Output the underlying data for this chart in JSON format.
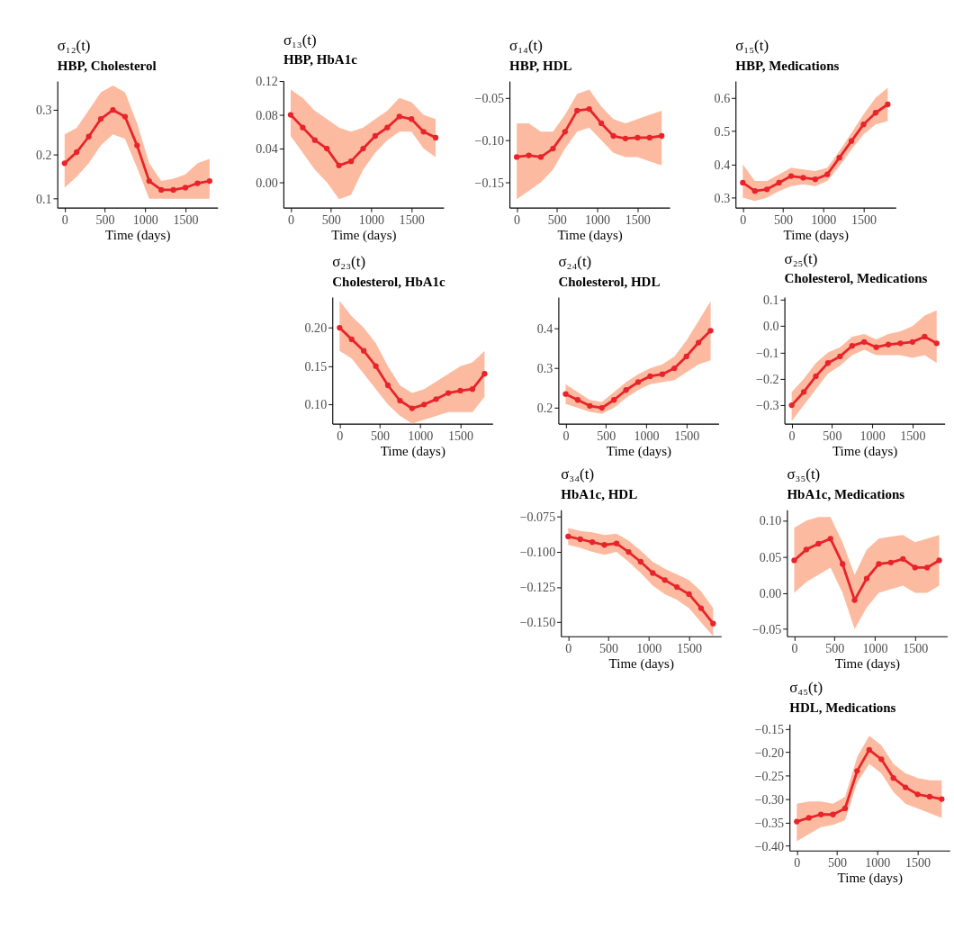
{
  "chart_data": [
    {
      "type": "line",
      "title": "σ₁₂(t)",
      "subtitle": "HBP, Cholesterol",
      "xlabel": "Time (days)",
      "marker": "circle",
      "line_style": "solid",
      "grid": false,
      "xlim": [
        -90,
        1900
      ],
      "xticks": [
        0,
        500,
        1000,
        1500
      ],
      "ylim": [
        0.08,
        0.365
      ],
      "yticks": [
        {
          "value": 0.1,
          "label": "0.1"
        },
        {
          "value": 0.2,
          "label": "0.2"
        },
        {
          "value": 0.3,
          "label": "0.3"
        }
      ],
      "x": [
        0,
        150,
        300,
        450,
        600,
        750,
        900,
        1050,
        1200,
        1350,
        1500,
        1650,
        1800
      ],
      "series": [
        {
          "color": "#e8242b",
          "values": [
            0.18,
            0.205,
            0.24,
            0.28,
            0.3,
            0.285,
            0.22,
            0.14,
            0.12,
            0.12,
            0.125,
            0.135,
            0.14
          ],
          "lower": [
            0.125,
            0.15,
            0.18,
            0.22,
            0.245,
            0.235,
            0.17,
            0.1,
            0.1,
            0.1,
            0.1,
            0.1,
            0.1
          ],
          "upper": [
            0.245,
            0.26,
            0.3,
            0.34,
            0.355,
            0.34,
            0.27,
            0.18,
            0.14,
            0.145,
            0.155,
            0.18,
            0.19
          ]
        }
      ]
    },
    {
      "type": "line",
      "title": "σ₁₃(t)",
      "subtitle": "HBP, HbA1c",
      "xlabel": "Time (days)",
      "marker": "circle",
      "line_style": "solid",
      "grid": false,
      "xlim": [
        -90,
        1900
      ],
      "xticks": [
        0,
        500,
        1000,
        1500
      ],
      "ylim": [
        -0.03,
        0.12
      ],
      "yticks": [
        {
          "value": 0,
          "label": "0.00"
        },
        {
          "value": 0.04,
          "label": "0.04"
        },
        {
          "value": 0.08,
          "label": "0.08"
        },
        {
          "value": 0.12,
          "label": "0.12"
        }
      ],
      "x": [
        0,
        150,
        300,
        450,
        600,
        750,
        900,
        1050,
        1200,
        1350,
        1500,
        1650,
        1800
      ],
      "series": [
        {
          "color": "#e8242b",
          "values": [
            0.08,
            0.065,
            0.05,
            0.04,
            0.02,
            0.025,
            0.04,
            0.055,
            0.065,
            0.078,
            0.075,
            0.06,
            0.053
          ],
          "lower": [
            0.055,
            0.035,
            0.015,
            0.0,
            -0.02,
            -0.015,
            0.015,
            0.035,
            0.05,
            0.06,
            0.06,
            0.04,
            0.03
          ],
          "upper": [
            0.11,
            0.1,
            0.085,
            0.075,
            0.065,
            0.06,
            0.065,
            0.075,
            0.085,
            0.1,
            0.095,
            0.08,
            0.075
          ]
        }
      ]
    },
    {
      "type": "line",
      "title": "σ₁₄(t)",
      "subtitle": "HBP, HDL",
      "xlabel": "Time (days)",
      "marker": "circle",
      "line_style": "solid",
      "grid": false,
      "xlim": [
        -90,
        1900
      ],
      "xticks": [
        0,
        500,
        1000,
        1500
      ],
      "ylim": [
        -0.18,
        -0.03
      ],
      "yticks": [
        {
          "value": -0.15,
          "label": "−0.15"
        },
        {
          "value": -0.1,
          "label": "−0.10"
        },
        {
          "value": -0.05,
          "label": "−0.05"
        }
      ],
      "x": [
        0,
        150,
        300,
        450,
        600,
        750,
        900,
        1050,
        1200,
        1350,
        1500,
        1650,
        1800
      ],
      "series": [
        {
          "color": "#e8242b",
          "values": [
            -0.12,
            -0.118,
            -0.12,
            -0.11,
            -0.09,
            -0.065,
            -0.063,
            -0.08,
            -0.095,
            -0.098,
            -0.097,
            -0.097,
            -0.095
          ],
          "lower": [
            -0.17,
            -0.16,
            -0.15,
            -0.135,
            -0.11,
            -0.09,
            -0.085,
            -0.1,
            -0.115,
            -0.12,
            -0.12,
            -0.125,
            -0.13
          ],
          "upper": [
            -0.08,
            -0.08,
            -0.09,
            -0.09,
            -0.07,
            -0.045,
            -0.04,
            -0.06,
            -0.075,
            -0.08,
            -0.075,
            -0.07,
            -0.065
          ]
        }
      ]
    },
    {
      "type": "line",
      "title": "σ₁₅(t)",
      "subtitle": "HBP, Medications",
      "xlabel": "Time (days)",
      "marker": "circle",
      "line_style": "solid",
      "grid": false,
      "xlim": [
        -90,
        1900
      ],
      "xticks": [
        0,
        500,
        1000,
        1500
      ],
      "ylim": [
        0.27,
        0.65
      ],
      "yticks": [
        {
          "value": 0.3,
          "label": "0.3"
        },
        {
          "value": 0.4,
          "label": "0.4"
        },
        {
          "value": 0.5,
          "label": "0.5"
        },
        {
          "value": 0.6,
          "label": "0.6"
        }
      ],
      "x": [
        0,
        150,
        300,
        450,
        600,
        750,
        900,
        1050,
        1200,
        1350,
        1500,
        1650,
        1800
      ],
      "series": [
        {
          "color": "#e8242b",
          "values": [
            0.345,
            0.32,
            0.325,
            0.345,
            0.365,
            0.36,
            0.355,
            0.37,
            0.42,
            0.47,
            0.52,
            0.555,
            0.58
          ],
          "lower": [
            0.3,
            0.29,
            0.3,
            0.32,
            0.335,
            0.34,
            0.335,
            0.35,
            0.395,
            0.445,
            0.49,
            0.52,
            0.53
          ],
          "upper": [
            0.4,
            0.35,
            0.35,
            0.37,
            0.39,
            0.385,
            0.38,
            0.39,
            0.44,
            0.495,
            0.55,
            0.6,
            0.63
          ]
        }
      ]
    },
    {
      "type": "line",
      "title": "σ₂₃(t)",
      "subtitle": "Cholesterol, HbA1c",
      "xlabel": "Time (days)",
      "marker": "circle",
      "line_style": "solid",
      "grid": false,
      "xlim": [
        -90,
        1900
      ],
      "xticks": [
        0,
        500,
        1000,
        1500
      ],
      "ylim": [
        0.075,
        0.24
      ],
      "yticks": [
        {
          "value": 0.1,
          "label": "0.10"
        },
        {
          "value": 0.15,
          "label": "0.15"
        },
        {
          "value": 0.2,
          "label": "0.20"
        }
      ],
      "x": [
        0,
        150,
        300,
        450,
        600,
        750,
        900,
        1050,
        1200,
        1350,
        1500,
        1650,
        1800
      ],
      "series": [
        {
          "color": "#e8242b",
          "values": [
            0.2,
            0.185,
            0.17,
            0.15,
            0.125,
            0.105,
            0.095,
            0.1,
            0.107,
            0.115,
            0.118,
            0.12,
            0.14
          ],
          "lower": [
            0.17,
            0.16,
            0.14,
            0.12,
            0.1,
            0.085,
            0.075,
            0.08,
            0.085,
            0.09,
            0.09,
            0.09,
            0.11
          ],
          "upper": [
            0.235,
            0.215,
            0.2,
            0.18,
            0.15,
            0.125,
            0.115,
            0.12,
            0.13,
            0.14,
            0.15,
            0.155,
            0.17
          ]
        }
      ]
    },
    {
      "type": "line",
      "title": "σ₂₄(t)",
      "subtitle": "Cholesterol, HDL",
      "xlabel": "Time (days)",
      "marker": "circle",
      "line_style": "solid",
      "grid": false,
      "xlim": [
        -90,
        1900
      ],
      "xticks": [
        0,
        500,
        1000,
        1500
      ],
      "ylim": [
        0.16,
        0.48
      ],
      "yticks": [
        {
          "value": 0.2,
          "label": "0.2"
        },
        {
          "value": 0.3,
          "label": "0.3"
        },
        {
          "value": 0.4,
          "label": "0.4"
        }
      ],
      "x": [
        0,
        150,
        300,
        450,
        600,
        750,
        900,
        1050,
        1200,
        1350,
        1500,
        1650,
        1800
      ],
      "series": [
        {
          "color": "#e8242b",
          "values": [
            0.235,
            0.22,
            0.205,
            0.2,
            0.22,
            0.245,
            0.265,
            0.28,
            0.285,
            0.3,
            0.33,
            0.365,
            0.395
          ],
          "lower": [
            0.21,
            0.2,
            0.19,
            0.185,
            0.2,
            0.225,
            0.245,
            0.26,
            0.265,
            0.27,
            0.29,
            0.31,
            0.32
          ],
          "upper": [
            0.26,
            0.24,
            0.22,
            0.215,
            0.24,
            0.265,
            0.285,
            0.3,
            0.31,
            0.33,
            0.37,
            0.42,
            0.47
          ]
        }
      ]
    },
    {
      "type": "line",
      "title": "σ₂₅(t)",
      "subtitle": "Cholesterol, Medications",
      "xlabel": "Time (days)",
      "marker": "circle",
      "line_style": "solid",
      "grid": false,
      "xlim": [
        -90,
        1900
      ],
      "xticks": [
        0,
        500,
        1000,
        1500
      ],
      "ylim": [
        -0.37,
        0.11
      ],
      "yticks": [
        {
          "value": -0.3,
          "label": "−0.3"
        },
        {
          "value": -0.2,
          "label": "−0.2"
        },
        {
          "value": -0.1,
          "label": "−0.1"
        },
        {
          "value": 0,
          "label": "0.0"
        },
        {
          "value": 0.1,
          "label": "0.1"
        }
      ],
      "x": [
        0,
        150,
        300,
        450,
        600,
        750,
        900,
        1050,
        1200,
        1350,
        1500,
        1650,
        1800
      ],
      "series": [
        {
          "color": "#e8242b",
          "values": [
            -0.3,
            -0.25,
            -0.19,
            -0.14,
            -0.115,
            -0.075,
            -0.06,
            -0.08,
            -0.07,
            -0.065,
            -0.06,
            -0.04,
            -0.065
          ],
          "lower": [
            -0.36,
            -0.3,
            -0.24,
            -0.18,
            -0.15,
            -0.11,
            -0.09,
            -0.11,
            -0.11,
            -0.11,
            -0.12,
            -0.11,
            -0.14
          ],
          "upper": [
            -0.25,
            -0.2,
            -0.14,
            -0.1,
            -0.08,
            -0.04,
            -0.03,
            -0.05,
            -0.03,
            -0.02,
            0.0,
            0.04,
            0.06
          ]
        }
      ]
    },
    {
      "type": "line",
      "title": "σ₃₄(t)",
      "subtitle": "HbA1c, HDL",
      "xlabel": "Time (days)",
      "marker": "circle",
      "line_style": "solid",
      "grid": false,
      "xlim": [
        -90,
        1900
      ],
      "xticks": [
        0,
        500,
        1000,
        1500
      ],
      "ylim": [
        -0.16,
        -0.07
      ],
      "yticks": [
        {
          "value": -0.15,
          "label": "−0.150"
        },
        {
          "value": -0.125,
          "label": "−0.125"
        },
        {
          "value": -0.1,
          "label": "−0.100"
        },
        {
          "value": -0.075,
          "label": "−0.075"
        }
      ],
      "x": [
        0,
        150,
        300,
        450,
        600,
        750,
        900,
        1050,
        1200,
        1350,
        1500,
        1650,
        1800
      ],
      "series": [
        {
          "color": "#e8242b",
          "values": [
            -0.089,
            -0.091,
            -0.093,
            -0.095,
            -0.094,
            -0.1,
            -0.107,
            -0.115,
            -0.12,
            -0.125,
            -0.13,
            -0.14,
            -0.151
          ],
          "lower": [
            -0.095,
            -0.097,
            -0.1,
            -0.102,
            -0.1,
            -0.107,
            -0.115,
            -0.124,
            -0.13,
            -0.134,
            -0.14,
            -0.15,
            -0.16
          ],
          "upper": [
            -0.083,
            -0.085,
            -0.086,
            -0.088,
            -0.087,
            -0.092,
            -0.099,
            -0.107,
            -0.112,
            -0.116,
            -0.12,
            -0.128,
            -0.14
          ]
        }
      ]
    },
    {
      "type": "line",
      "title": "σ₃₅(t)",
      "subtitle": "HbA1c, Medications",
      "xlabel": "Time (days)",
      "marker": "circle",
      "line_style": "solid",
      "grid": false,
      "xlim": [
        -90,
        1900
      ],
      "xticks": [
        0,
        500,
        1000,
        1500
      ],
      "ylim": [
        -0.06,
        0.115
      ],
      "yticks": [
        {
          "value": -0.05,
          "label": "−0.05"
        },
        {
          "value": 0,
          "label": "0.00"
        },
        {
          "value": 0.05,
          "label": "0.05"
        },
        {
          "value": 0.1,
          "label": "0.10"
        }
      ],
      "x": [
        0,
        150,
        300,
        450,
        600,
        750,
        900,
        1050,
        1200,
        1350,
        1500,
        1650,
        1800
      ],
      "series": [
        {
          "color": "#e8242b",
          "values": [
            0.045,
            0.06,
            0.068,
            0.075,
            0.04,
            -0.01,
            0.02,
            0.04,
            0.042,
            0.047,
            0.035,
            0.035,
            0.045
          ],
          "lower": [
            0.0,
            0.015,
            0.025,
            0.035,
            0.0,
            -0.05,
            -0.02,
            0.0,
            0.005,
            0.01,
            0.0,
            0.0,
            0.01
          ],
          "upper": [
            0.09,
            0.1,
            0.105,
            0.105,
            0.07,
            0.025,
            0.06,
            0.075,
            0.078,
            0.08,
            0.07,
            0.075,
            0.08
          ]
        }
      ]
    },
    {
      "type": "line",
      "title": "σ₄₅(t)",
      "subtitle": "HDL, Medications",
      "xlabel": "Time (days)",
      "marker": "circle",
      "line_style": "solid",
      "grid": false,
      "xlim": [
        -90,
        1900
      ],
      "xticks": [
        0,
        500,
        1000,
        1500
      ],
      "ylim": [
        -0.41,
        -0.14
      ],
      "yticks": [
        {
          "value": -0.4,
          "label": "−0.40"
        },
        {
          "value": -0.35,
          "label": "−0.35"
        },
        {
          "value": -0.3,
          "label": "−0.30"
        },
        {
          "value": -0.25,
          "label": "−0.25"
        },
        {
          "value": -0.2,
          "label": "−0.20"
        },
        {
          "value": -0.15,
          "label": "−0.15"
        }
      ],
      "x": [
        0,
        150,
        300,
        450,
        600,
        750,
        900,
        1050,
        1200,
        1350,
        1500,
        1650,
        1800
      ],
      "series": [
        {
          "color": "#e8242b",
          "values": [
            -0.348,
            -0.34,
            -0.333,
            -0.333,
            -0.32,
            -0.24,
            -0.195,
            -0.215,
            -0.255,
            -0.275,
            -0.29,
            -0.295,
            -0.3
          ],
          "lower": [
            -0.39,
            -0.375,
            -0.36,
            -0.355,
            -0.345,
            -0.265,
            -0.225,
            -0.245,
            -0.285,
            -0.31,
            -0.32,
            -0.33,
            -0.34
          ],
          "upper": [
            -0.31,
            -0.305,
            -0.305,
            -0.31,
            -0.295,
            -0.21,
            -0.165,
            -0.185,
            -0.225,
            -0.245,
            -0.255,
            -0.26,
            -0.26
          ]
        }
      ]
    }
  ]
}
